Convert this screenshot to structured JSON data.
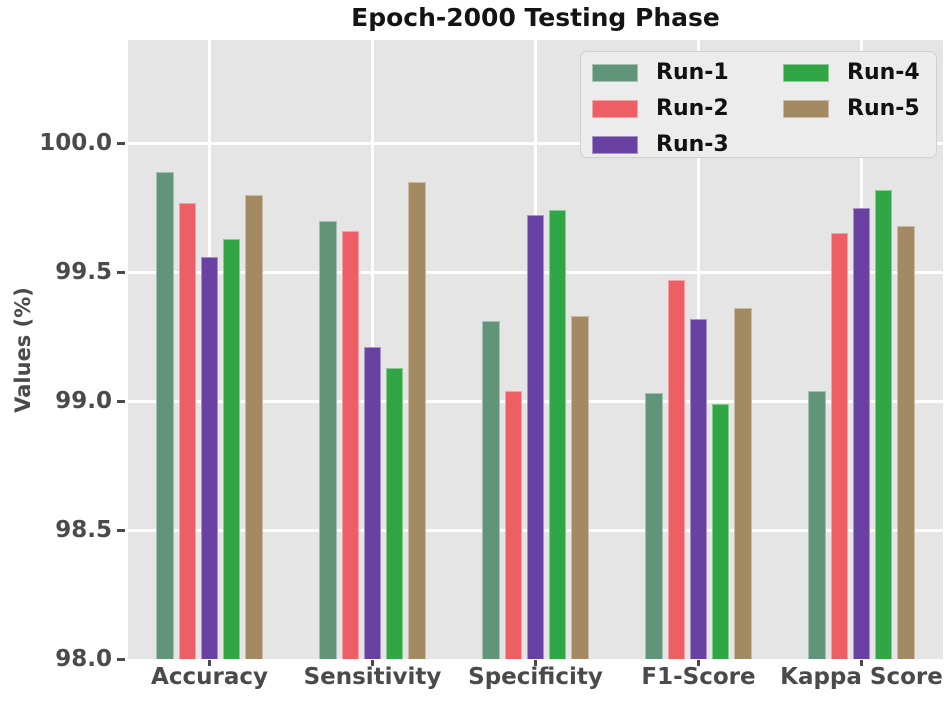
{
  "title": "Epoch-2000 Testing Phase",
  "ylabel": "Values (%)",
  "chart_data": {
    "type": "bar",
    "title": "Epoch-2000 Testing Phase",
    "xlabel": "",
    "ylabel": "Values (%)",
    "categories": [
      "Accuracy",
      "Sensitivity",
      "Specificity",
      "F1-Score",
      "Kappa Score"
    ],
    "series": [
      {
        "name": "Run-1",
        "color": "#60957a",
        "values": [
          99.89,
          99.7,
          99.31,
          99.03,
          99.04
        ]
      },
      {
        "name": "Run-2",
        "color": "#ee5e65",
        "values": [
          99.77,
          99.66,
          99.04,
          99.47,
          99.65
        ]
      },
      {
        "name": "Run-3",
        "color": "#6941a3",
        "values": [
          99.56,
          99.21,
          99.72,
          99.32,
          99.75
        ]
      },
      {
        "name": "Run-4",
        "color": "#31a645",
        "values": [
          99.63,
          99.13,
          99.74,
          98.99,
          99.82
        ]
      },
      {
        "name": "Run-5",
        "color": "#a48a62",
        "values": [
          99.8,
          99.85,
          99.33,
          99.36,
          99.68
        ]
      }
    ],
    "ylim": [
      98.0,
      100.4
    ],
    "yticks": [
      98.0,
      98.5,
      99.0,
      99.5,
      100.0
    ],
    "grid": true,
    "legend_position": "upper right",
    "legend_columns": 2,
    "colors": {
      "plot_background": "#e5e5e6",
      "grid_line": "#ffffff",
      "tick_text": "#4a4a4a",
      "title_text": "#141414",
      "legend_background": "#ececec",
      "legend_border": "#d0d0d0"
    }
  }
}
